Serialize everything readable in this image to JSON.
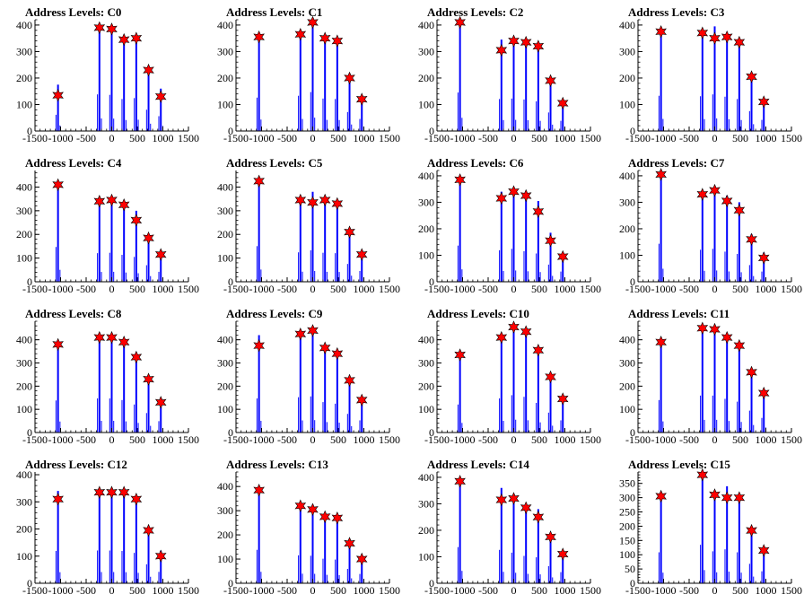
{
  "colors": {
    "bar": "#0000ff",
    "marker": "#ff0000",
    "marker_stroke": "#000000",
    "axis": "#000000"
  },
  "chart_data": [
    {
      "type": "bar",
      "title": "Address Levels: C0",
      "xlim": [
        -1500,
        1500
      ],
      "ylim": [
        0,
        420
      ],
      "xticks": [
        -1500,
        -1000,
        -500,
        0,
        500,
        1000,
        1500
      ],
      "yticks": [
        0,
        100,
        200,
        300,
        400
      ],
      "x": [
        -1050,
        -240,
        0,
        240,
        480,
        720,
        960
      ],
      "values": [
        175,
        395,
        390,
        345,
        355,
        230,
        160
      ],
      "peaks": [
        135,
        390,
        385,
        345,
        350,
        230,
        130
      ],
      "marker_symbol": "star"
    },
    {
      "type": "bar",
      "title": "Address Levels: C1",
      "xlim": [
        -1500,
        1500
      ],
      "ylim": [
        0,
        420
      ],
      "xticks": [
        -1500,
        -1000,
        -500,
        0,
        500,
        1000,
        1500
      ],
      "yticks": [
        0,
        100,
        200,
        300,
        400
      ],
      "x": [
        -1050,
        -240,
        0,
        240,
        480,
        720,
        960
      ],
      "values": [
        360,
        380,
        420,
        350,
        345,
        205,
        130
      ],
      "peaks": [
        355,
        365,
        410,
        350,
        340,
        200,
        120
      ],
      "marker_symbol": "star"
    },
    {
      "type": "bar",
      "title": "Address Levels: C2",
      "xlim": [
        -1500,
        1500
      ],
      "ylim": [
        0,
        420
      ],
      "xticks": [
        -1500,
        -1000,
        -500,
        0,
        500,
        1000,
        1500
      ],
      "yticks": [
        0,
        100,
        200,
        300,
        400
      ],
      "x": [
        -1050,
        -240,
        0,
        240,
        480,
        720,
        960
      ],
      "values": [
        415,
        345,
        350,
        340,
        320,
        200,
        110
      ],
      "peaks": [
        410,
        305,
        340,
        335,
        320,
        190,
        105
      ],
      "marker_symbol": "star"
    },
    {
      "type": "bar",
      "title": "Address Levels: C3",
      "xlim": [
        -1500,
        1500
      ],
      "ylim": [
        0,
        420
      ],
      "xticks": [
        -1500,
        -1000,
        -500,
        0,
        500,
        1000,
        1500
      ],
      "yticks": [
        0,
        100,
        200,
        300,
        400
      ],
      "x": [
        -1050,
        -240,
        0,
        240,
        480,
        720,
        960
      ],
      "values": [
        380,
        375,
        395,
        370,
        345,
        215,
        120
      ],
      "peaks": [
        375,
        370,
        350,
        355,
        335,
        205,
        110
      ],
      "marker_symbol": "star"
    },
    {
      "type": "bar",
      "title": "Address Levels: C4",
      "xlim": [
        -1500,
        1500
      ],
      "ylim": [
        0,
        470
      ],
      "xticks": [
        -1500,
        -1000,
        -500,
        0,
        500,
        1000,
        1500
      ],
      "yticks": [
        0,
        100,
        200,
        300,
        400
      ],
      "x": [
        -1050,
        -240,
        0,
        240,
        480,
        720,
        960
      ],
      "values": [
        420,
        345,
        350,
        325,
        300,
        200,
        120
      ],
      "peaks": [
        410,
        340,
        345,
        325,
        260,
        185,
        115
      ],
      "marker_symbol": "star"
    },
    {
      "type": "bar",
      "title": "Address Levels: C5",
      "xlim": [
        -1500,
        1500
      ],
      "ylim": [
        0,
        470
      ],
      "xticks": [
        -1500,
        -1000,
        -500,
        0,
        500,
        1000,
        1500
      ],
      "yticks": [
        0,
        100,
        200,
        300,
        400
      ],
      "x": [
        -1050,
        -240,
        0,
        240,
        480,
        720,
        960
      ],
      "values": [
        430,
        355,
        380,
        350,
        345,
        215,
        130
      ],
      "peaks": [
        425,
        345,
        335,
        345,
        330,
        210,
        115
      ],
      "marker_symbol": "star"
    },
    {
      "type": "bar",
      "title": "Address Levels: C6",
      "xlim": [
        -1500,
        1500
      ],
      "ylim": [
        0,
        420
      ],
      "xticks": [
        -1500,
        -1000,
        -500,
        0,
        500,
        1000,
        1500
      ],
      "yticks": [
        0,
        100,
        200,
        300,
        400
      ],
      "x": [
        -1050,
        -240,
        0,
        240,
        480,
        720,
        960
      ],
      "values": [
        390,
        340,
        355,
        330,
        305,
        185,
        110
      ],
      "peaks": [
        385,
        315,
        340,
        325,
        265,
        155,
        95
      ],
      "marker_symbol": "star"
    },
    {
      "type": "bar",
      "title": "Address Levels: C7",
      "xlim": [
        -1500,
        1500
      ],
      "ylim": [
        0,
        420
      ],
      "xticks": [
        -1500,
        -1000,
        -500,
        0,
        500,
        1000,
        1500
      ],
      "yticks": [
        0,
        100,
        200,
        300,
        400
      ],
      "x": [
        -1050,
        -240,
        0,
        240,
        480,
        720,
        960
      ],
      "values": [
        410,
        345,
        355,
        325,
        300,
        180,
        110
      ],
      "peaks": [
        405,
        330,
        345,
        305,
        270,
        160,
        90
      ],
      "marker_symbol": "star"
    },
    {
      "type": "bar",
      "title": "Address Levels: C8",
      "xlim": [
        -1500,
        1500
      ],
      "ylim": [
        0,
        480
      ],
      "xticks": [
        -1500,
        -1000,
        -500,
        0,
        500,
        1000,
        1500
      ],
      "yticks": [
        0,
        100,
        200,
        300,
        400
      ],
      "x": [
        -1050,
        -240,
        0,
        240,
        480,
        720,
        960
      ],
      "values": [
        395,
        420,
        420,
        400,
        345,
        240,
        140
      ],
      "peaks": [
        380,
        410,
        410,
        390,
        325,
        230,
        130
      ],
      "marker_symbol": "star"
    },
    {
      "type": "bar",
      "title": "Address Levels: C9",
      "xlim": [
        -1500,
        1500
      ],
      "ylim": [
        0,
        480
      ],
      "xticks": [
        -1500,
        -1000,
        -500,
        0,
        500,
        1000,
        1500
      ],
      "yticks": [
        0,
        100,
        200,
        300,
        400
      ],
      "x": [
        -1050,
        -240,
        0,
        240,
        480,
        720,
        960
      ],
      "values": [
        420,
        435,
        445,
        375,
        355,
        230,
        150
      ],
      "peaks": [
        375,
        425,
        440,
        365,
        340,
        225,
        140
      ],
      "marker_symbol": "star"
    },
    {
      "type": "bar",
      "title": "Address Levels: C10",
      "xlim": [
        -1500,
        1500
      ],
      "ylim": [
        0,
        480
      ],
      "xticks": [
        -1500,
        -1000,
        -500,
        0,
        500,
        1000,
        1500
      ],
      "yticks": [
        0,
        100,
        200,
        300,
        400
      ],
      "x": [
        -1050,
        -240,
        0,
        240,
        480,
        720,
        960
      ],
      "values": [
        345,
        420,
        460,
        440,
        365,
        245,
        150
      ],
      "peaks": [
        335,
        410,
        455,
        435,
        355,
        240,
        145
      ],
      "marker_symbol": "star"
    },
    {
      "type": "bar",
      "title": "Address Levels: C11",
      "xlim": [
        -1500,
        1500
      ],
      "ylim": [
        0,
        480
      ],
      "xticks": [
        -1500,
        -1000,
        -500,
        0,
        500,
        1000,
        1500
      ],
      "yticks": [
        0,
        100,
        200,
        300,
        400
      ],
      "x": [
        -1050,
        -240,
        0,
        240,
        480,
        720,
        960
      ],
      "values": [
        400,
        455,
        455,
        415,
        380,
        270,
        180
      ],
      "peaks": [
        390,
        450,
        445,
        410,
        375,
        260,
        170
      ],
      "marker_symbol": "star"
    },
    {
      "type": "bar",
      "title": "Address Levels: C12",
      "xlim": [
        -1500,
        1500
      ],
      "ylim": [
        0,
        410
      ],
      "xticks": [
        -1500,
        -1000,
        -500,
        0,
        500,
        1000,
        1500
      ],
      "yticks": [
        0,
        100,
        200,
        300,
        400
      ],
      "x": [
        -1050,
        -240,
        0,
        240,
        480,
        720,
        960
      ],
      "values": [
        340,
        345,
        345,
        340,
        320,
        200,
        120
      ],
      "peaks": [
        310,
        335,
        335,
        335,
        310,
        195,
        100
      ],
      "marker_symbol": "star"
    },
    {
      "type": "bar",
      "title": "Address Levels: C13",
      "xlim": [
        -1500,
        1500
      ],
      "ylim": [
        0,
        460
      ],
      "xticks": [
        -1500,
        -1000,
        -500,
        0,
        500,
        1000,
        1500
      ],
      "yticks": [
        0,
        100,
        200,
        300,
        400
      ],
      "x": [
        -1050,
        -240,
        0,
        240,
        480,
        720,
        960
      ],
      "values": [
        395,
        330,
        325,
        290,
        280,
        170,
        110
      ],
      "peaks": [
        385,
        320,
        305,
        275,
        270,
        165,
        100
      ],
      "marker_symbol": "star"
    },
    {
      "type": "bar",
      "title": "Address Levels: C14",
      "xlim": [
        -1500,
        1500
      ],
      "ylim": [
        0,
        420
      ],
      "xticks": [
        -1500,
        -1000,
        -500,
        0,
        500,
        1000,
        1500
      ],
      "yticks": [
        0,
        100,
        200,
        300,
        400
      ],
      "x": [
        -1050,
        -240,
        0,
        240,
        480,
        720,
        960
      ],
      "values": [
        390,
        360,
        330,
        295,
        280,
        185,
        120
      ],
      "peaks": [
        385,
        315,
        320,
        285,
        250,
        175,
        110
      ],
      "marker_symbol": "star"
    },
    {
      "type": "bar",
      "title": "Address Levels: C15",
      "xlim": [
        -1500,
        1500
      ],
      "ylim": [
        0,
        390
      ],
      "xticks": [
        -1500,
        -1000,
        -500,
        0,
        500,
        1000,
        1500
      ],
      "yticks": [
        0,
        50,
        100,
        150,
        200,
        250,
        300,
        350
      ],
      "x": [
        -1050,
        -240,
        0,
        240,
        480,
        720,
        960
      ],
      "values": [
        310,
        385,
        320,
        340,
        310,
        195,
        120
      ],
      "peaks": [
        305,
        380,
        310,
        300,
        300,
        185,
        115
      ],
      "marker_symbol": "star"
    }
  ]
}
